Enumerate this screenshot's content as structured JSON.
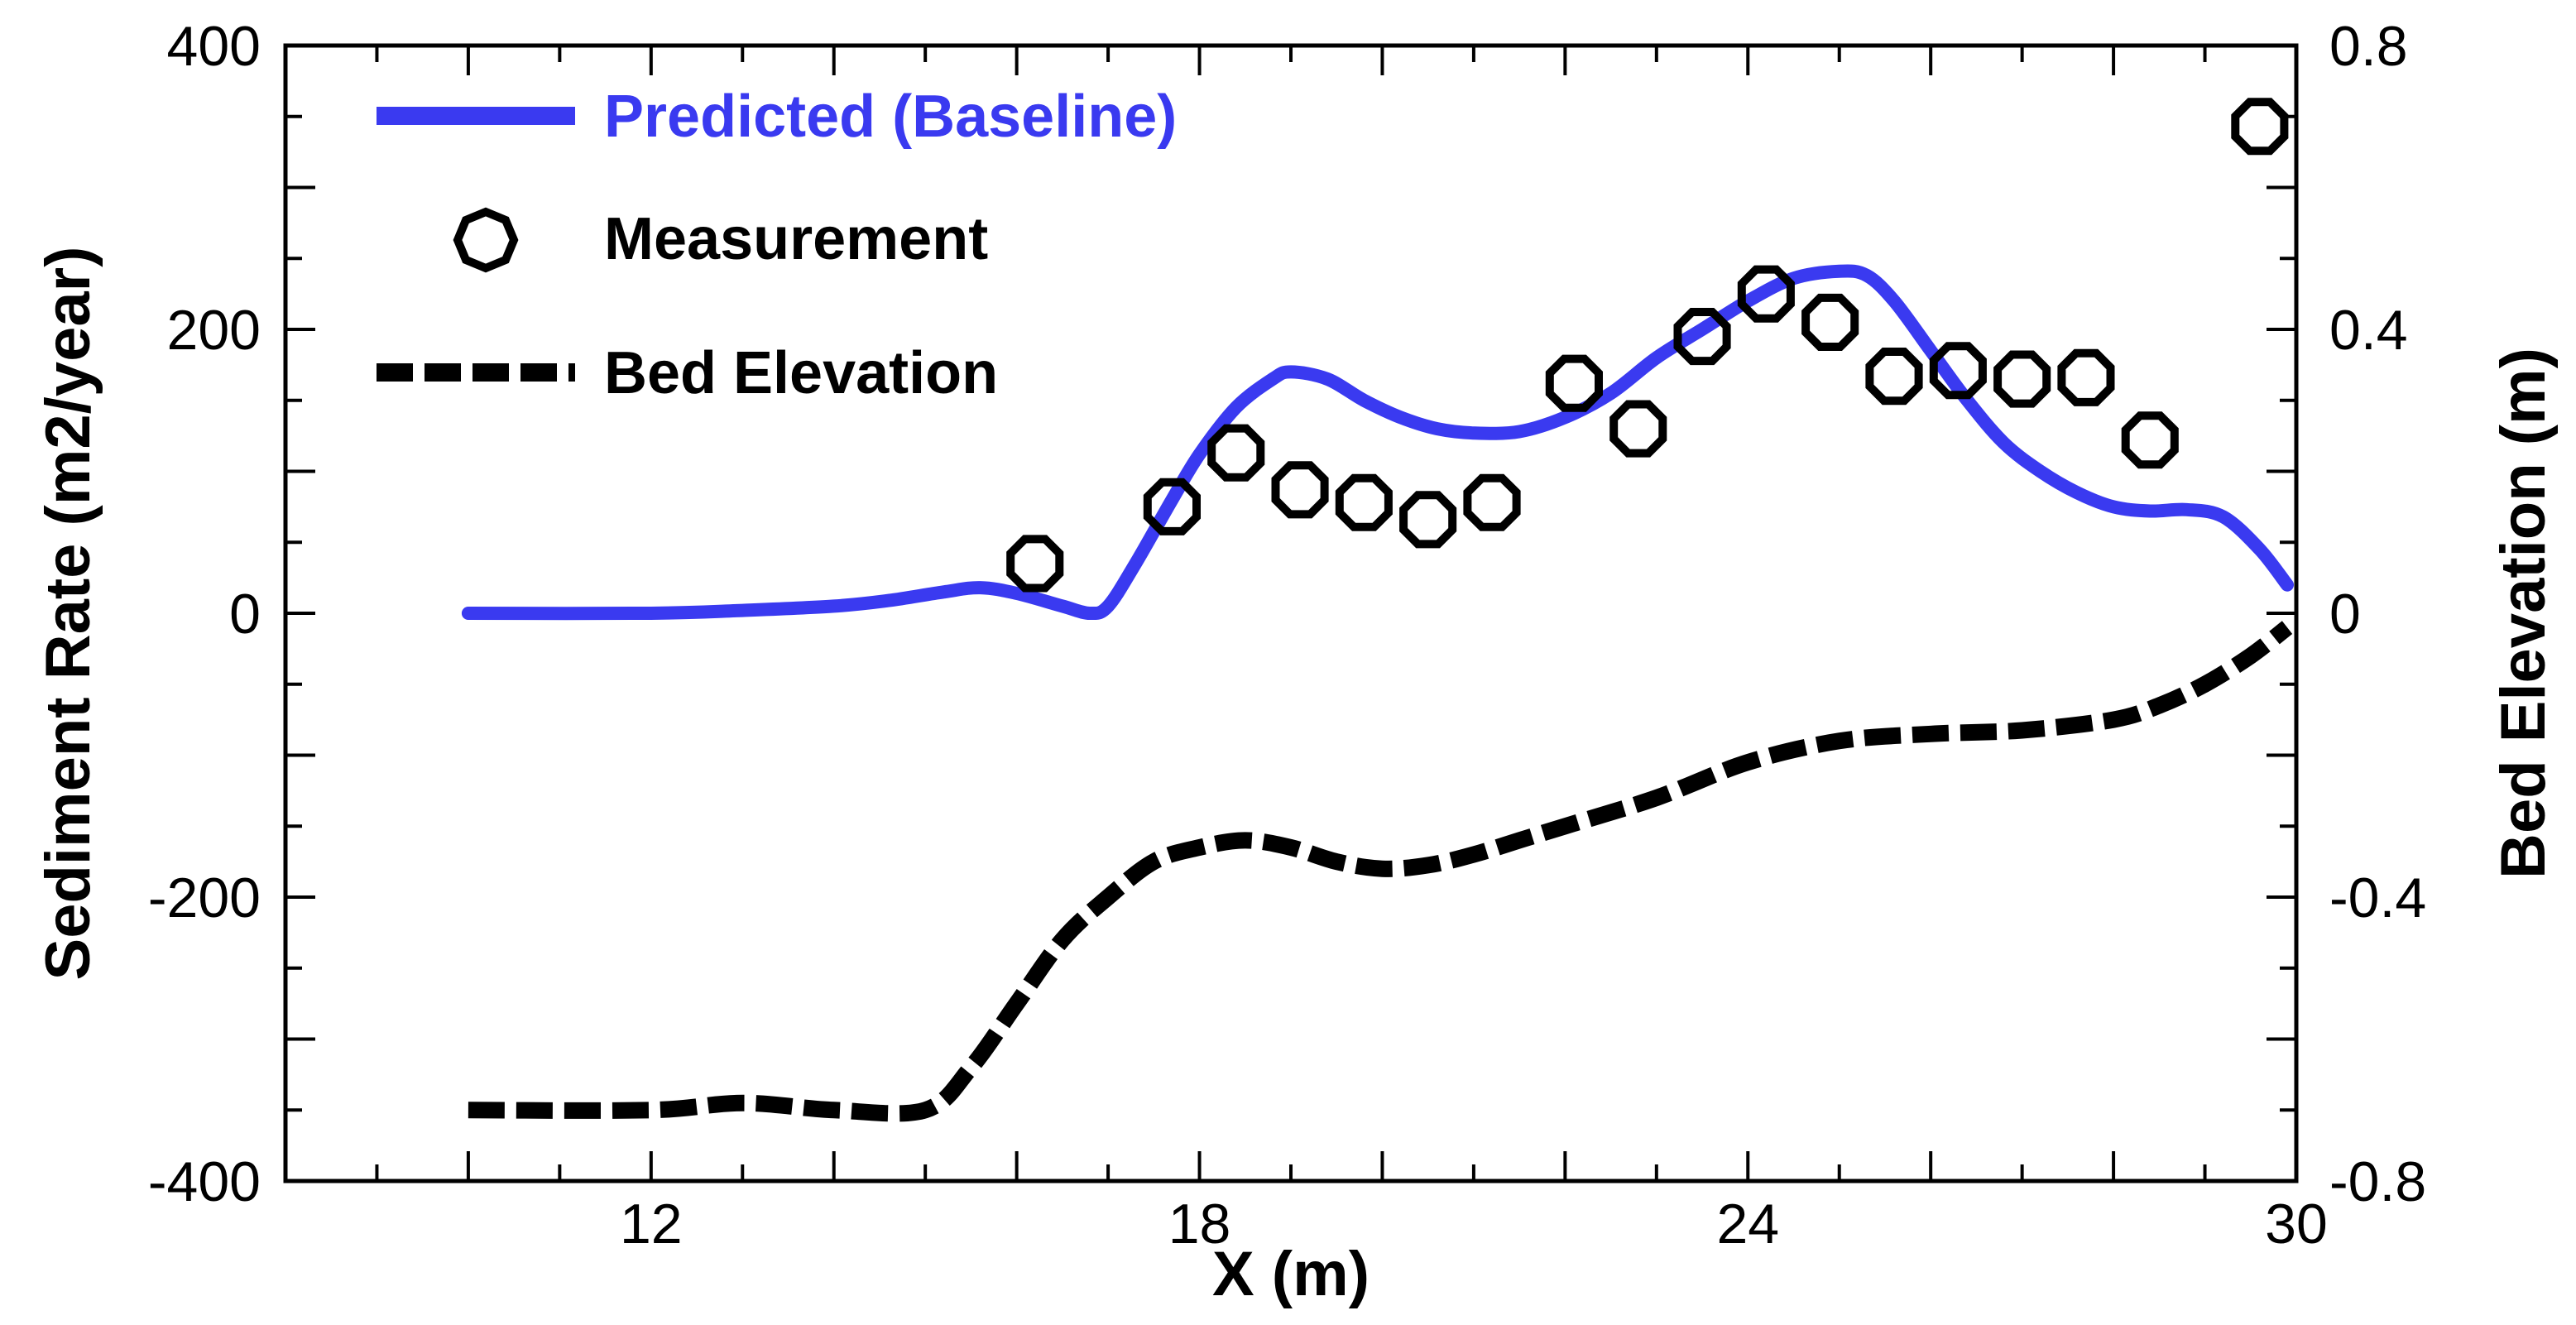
{
  "chart_data": {
    "type": "line",
    "title": "",
    "xlabel": "X (m)",
    "ylabel": "Sediment Rate (m2/year)",
    "y2label": "Bed Elevation (m)",
    "xlim": [
      8,
      30
    ],
    "ylim": [
      -400,
      400
    ],
    "y2lim": [
      -0.8,
      0.8
    ],
    "xticks": [
      12,
      18,
      24,
      30
    ],
    "xtick_labels": [
      "12",
      "18",
      "24",
      "30"
    ],
    "yticks": [
      -400,
      -200,
      0,
      200,
      400
    ],
    "ytick_labels": [
      "-400",
      "-200",
      "0",
      "200",
      "400"
    ],
    "y2ticks": [
      -0.8,
      -0.4,
      0,
      0.4,
      0.8
    ],
    "y2tick_labels": [
      "-0.8",
      "-0.4",
      "0",
      "0.4",
      "0.8"
    ],
    "grid": false,
    "legend_position": "top-left",
    "colors": {
      "predicted": "#3a3af0",
      "measurement": "#000000",
      "bed": "#000000"
    },
    "series": [
      {
        "name": "Predicted (Baseline)",
        "axis": "left",
        "style": "solid",
        "x": [
          10,
          12,
          13,
          14,
          14.6,
          15.2,
          15.6,
          16,
          16.5,
          16.8,
          17,
          17.3,
          17.7,
          18,
          18.4,
          18.8,
          19,
          19.4,
          19.8,
          20.2,
          20.6,
          21,
          21.5,
          22,
          22.5,
          23,
          23.5,
          24,
          24.5,
          25,
          25.3,
          25.6,
          26,
          26.4,
          26.8,
          27.2,
          27.6,
          28,
          28.4,
          28.8,
          29.2,
          29.6,
          29.9
        ],
        "y": [
          0,
          0,
          2,
          5,
          9,
          15,
          18,
          14,
          5,
          0,
          5,
          35,
          80,
          112,
          145,
          165,
          170,
          165,
          150,
          138,
          130,
          127,
          128,
          138,
          155,
          180,
          200,
          220,
          236,
          241,
          238,
          220,
          185,
          150,
          120,
          100,
          85,
          75,
          72,
          73,
          68,
          45,
          20
        ]
      },
      {
        "name": "Measurement",
        "axis": "left",
        "style": "markers",
        "x": [
          16.2,
          17.7,
          18.4,
          19.1,
          19.8,
          20.5,
          21.2,
          22.1,
          22.8,
          23.5,
          24.2,
          24.9,
          25.6,
          26.3,
          27,
          27.7,
          28.4,
          29.6
        ],
        "y": [
          35,
          75,
          113,
          87,
          78,
          66,
          78,
          162,
          130,
          195,
          225,
          205,
          167,
          171,
          165,
          166,
          122,
          343
        ]
      },
      {
        "name": "Bed Elevation",
        "axis": "right",
        "style": "dashed",
        "x": [
          10,
          12,
          13,
          14,
          15,
          15.5,
          16,
          16.5,
          17,
          17.5,
          18,
          18.5,
          19,
          19.5,
          20,
          20.5,
          21,
          21.5,
          22,
          23,
          24,
          25,
          26,
          27,
          28,
          28.5,
          29,
          29.5,
          29.9
        ],
        "y": [
          -0.7,
          -0.7,
          -0.69,
          -0.7,
          -0.7,
          -0.64,
          -0.55,
          -0.46,
          -0.4,
          -0.35,
          -0.33,
          -0.32,
          -0.33,
          -0.35,
          -0.36,
          -0.355,
          -0.34,
          -0.32,
          -0.3,
          -0.26,
          -0.21,
          -0.18,
          -0.17,
          -0.165,
          -0.15,
          -0.13,
          -0.1,
          -0.06,
          -0.02
        ]
      }
    ]
  }
}
